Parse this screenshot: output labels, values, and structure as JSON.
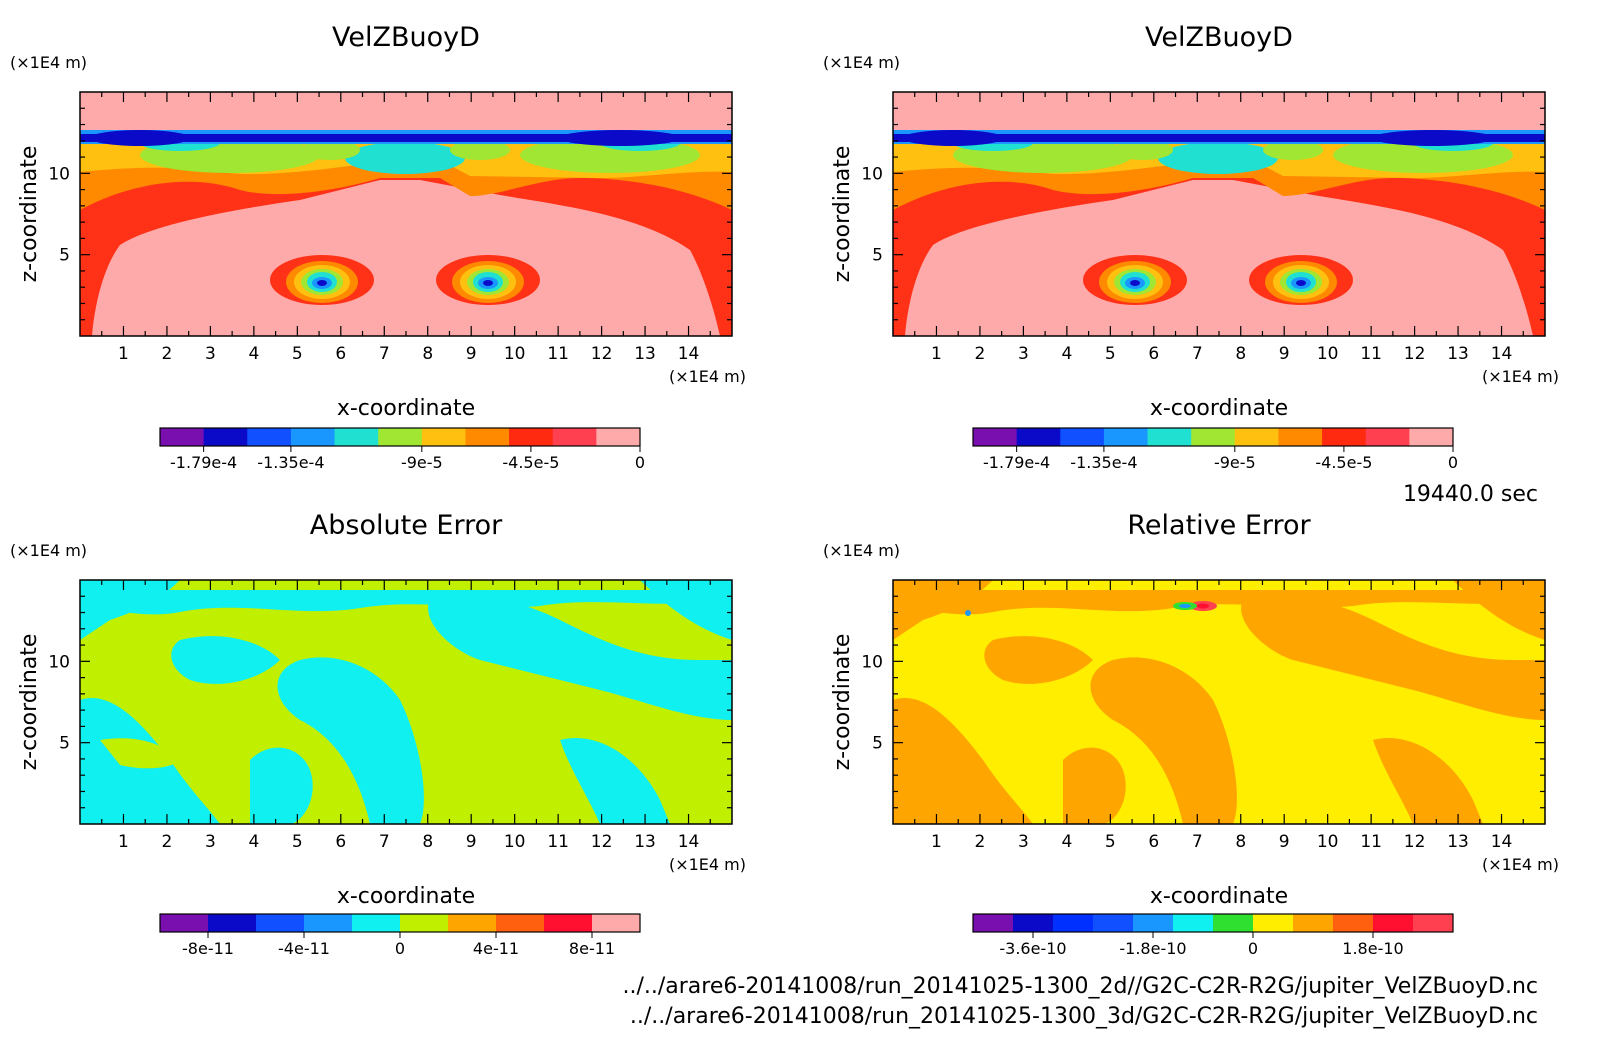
{
  "time_label": "19440.0 sec",
  "footer_lines": [
    "../../arare6-20141008/run_20141025-1300_2d//G2C-C2R-R2G/jupiter_VelZBuoyD.nc",
    "../../arare6-20141008/run_20141025-1300_3d/G2C-C2R-R2G/jupiter_VelZBuoyD.nc"
  ],
  "chart_data": [
    {
      "type": "heatmap",
      "title": "VelZBuoyD",
      "xlabel": "x-coordinate",
      "ylabel": "z-coordinate",
      "x_unit": "(×1E4 m)",
      "y_unit": "(×1E4 m)",
      "xlim": [
        0,
        15
      ],
      "ylim": [
        0,
        15
      ],
      "x_ticks": [
        "1",
        "2",
        "3",
        "4",
        "5",
        "6",
        "7",
        "8",
        "9",
        "10",
        "11",
        "12",
        "13",
        "14"
      ],
      "y_ticks": [
        "5",
        "10"
      ],
      "colorbar": {
        "colors": [
          "#7a0fb0",
          "#0a0ac8",
          "#1050ff",
          "#1a96ff",
          "#20e0d2",
          "#a0e632",
          "#ffc010",
          "#ff8a00",
          "#ff2a10",
          "#ff4050",
          "#ffaaaa"
        ],
        "labels": [
          "-1.79e-4",
          "-1.35e-4",
          "-9e-5",
          "-4.5e-5",
          "0"
        ]
      }
    },
    {
      "type": "heatmap",
      "title": "VelZBuoyD",
      "xlabel": "x-coordinate",
      "ylabel": "z-coordinate",
      "x_unit": "(×1E4 m)",
      "y_unit": "(×1E4 m)",
      "xlim": [
        0,
        15
      ],
      "ylim": [
        0,
        15
      ],
      "x_ticks": [
        "1",
        "2",
        "3",
        "4",
        "5",
        "6",
        "7",
        "8",
        "9",
        "10",
        "11",
        "12",
        "13",
        "14"
      ],
      "y_ticks": [
        "5",
        "10"
      ],
      "colorbar": {
        "colors": [
          "#7a0fb0",
          "#0a0ac8",
          "#1050ff",
          "#1a96ff",
          "#20e0d2",
          "#a0e632",
          "#ffc010",
          "#ff8a00",
          "#ff2a10",
          "#ff4050",
          "#ffaaaa"
        ],
        "labels": [
          "-1.79e-4",
          "-1.35e-4",
          "-9e-5",
          "-4.5e-5",
          "0"
        ]
      }
    },
    {
      "type": "heatmap",
      "title": "Absolute Error",
      "xlabel": "x-coordinate",
      "ylabel": "z-coordinate",
      "x_unit": "(×1E4 m)",
      "y_unit": "(×1E4 m)",
      "xlim": [
        0,
        15
      ],
      "ylim": [
        0,
        15
      ],
      "x_ticks": [
        "1",
        "2",
        "3",
        "4",
        "5",
        "6",
        "7",
        "8",
        "9",
        "10",
        "11",
        "12",
        "13",
        "14"
      ],
      "y_ticks": [
        "5",
        "10"
      ],
      "colorbar": {
        "colors": [
          "#7a0fb0",
          "#0a0ac8",
          "#1050ff",
          "#1a96ff",
          "#10f0f0",
          "#c0f000",
          "#ffa500",
          "#ff6010",
          "#ff1030",
          "#ffaaaa"
        ],
        "labels": [
          "-8e-11",
          "-4e-11",
          "0",
          "4e-11",
          "8e-11"
        ]
      }
    },
    {
      "type": "heatmap",
      "title": "Relative Error",
      "xlabel": "x-coordinate",
      "ylabel": "z-coordinate",
      "x_unit": "(×1E4 m)",
      "y_unit": "(×1E4 m)",
      "xlim": [
        0,
        15
      ],
      "ylim": [
        0,
        15
      ],
      "x_ticks": [
        "1",
        "2",
        "3",
        "4",
        "5",
        "6",
        "7",
        "8",
        "9",
        "10",
        "11",
        "12",
        "13",
        "14"
      ],
      "y_ticks": [
        "5",
        "10"
      ],
      "colorbar": {
        "colors": [
          "#7a0fb0",
          "#0a0ac8",
          "#0030ff",
          "#1050ff",
          "#1a96ff",
          "#10f0f0",
          "#30e030",
          "#ffee00",
          "#ffa500",
          "#ff6010",
          "#ff1030",
          "#ff4050"
        ],
        "labels": [
          "-3.6e-10",
          "-1.8e-10",
          "0",
          "1.8e-10"
        ]
      }
    }
  ]
}
